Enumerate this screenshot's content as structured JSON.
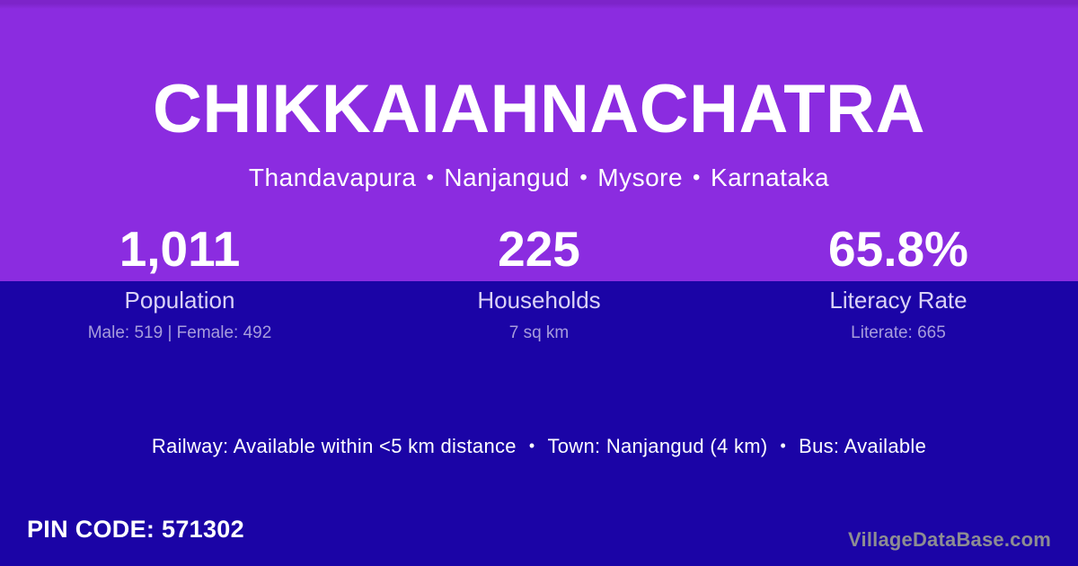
{
  "colors": {
    "purple_bg": "#8B2CE0",
    "purple_edge": "#7D24C9",
    "navy_bg": "#1B04A6",
    "label_text": "#DAD2F6",
    "detail_text": "#A79DDC",
    "watermark_text": "#8D8D92"
  },
  "header": {
    "village_name": "CHIKKAIAHNACHATRA",
    "breadcrumb": {
      "separator": "•",
      "items": [
        "Thandavapura",
        "Nanjangud",
        "Mysore",
        "Karnataka"
      ]
    }
  },
  "stats": [
    {
      "value": "1,011",
      "label": "Population",
      "detail": "Male: 519 | Female: 492"
    },
    {
      "value": "225",
      "label": "Households",
      "detail": "7 sq km"
    },
    {
      "value": "65.8%",
      "label": "Literacy Rate",
      "detail": "Literate: 665"
    }
  ],
  "amenities": {
    "separator": "•",
    "items": [
      "Railway: Available within <5 km distance",
      "Town: Nanjangud (4 km)",
      "Bus: Available"
    ]
  },
  "footer": {
    "pin_code": {
      "label": "PIN CODE:",
      "value": "571302"
    },
    "watermark": "VillageDataBase.com"
  }
}
